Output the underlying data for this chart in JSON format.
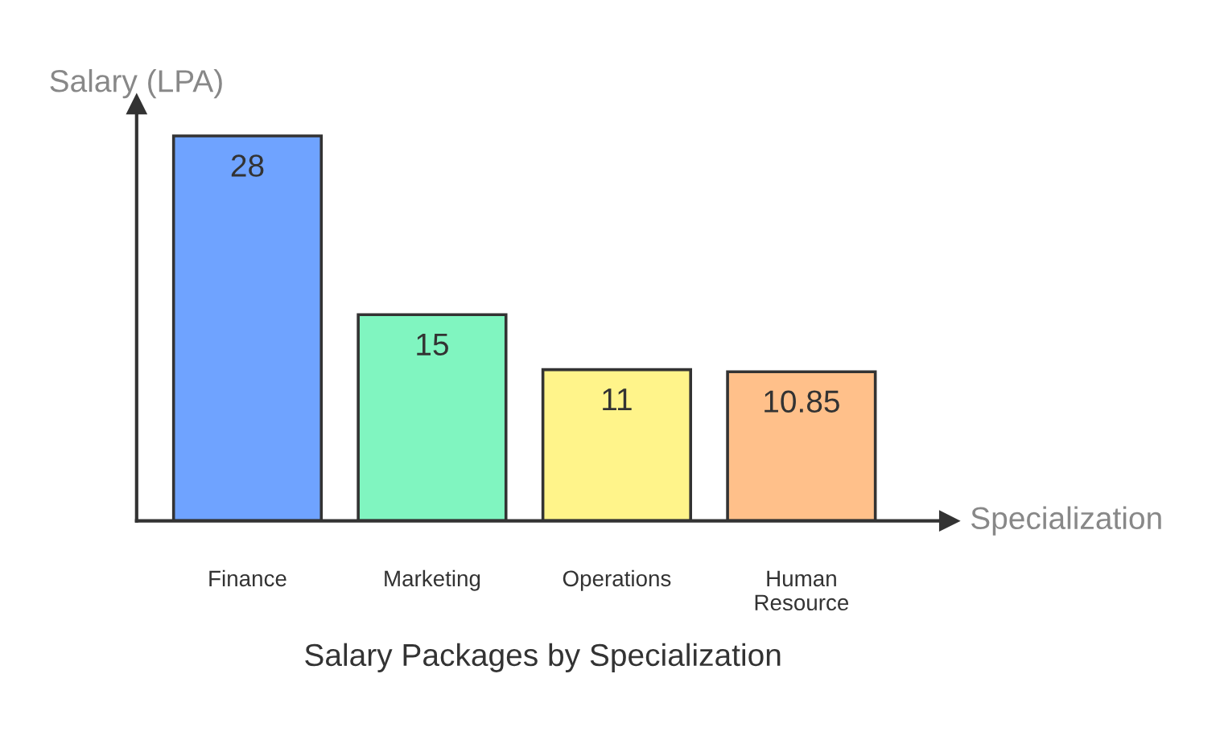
{
  "chart_data": {
    "type": "bar",
    "title": "Salary Packages by Specialization",
    "xlabel": "Specialization",
    "ylabel": "Salary (LPA)",
    "categories": [
      "Finance",
      "Marketing",
      "Operations",
      "Human\nResource"
    ],
    "values": [
      28,
      15,
      11,
      10.85
    ],
    "colors": [
      "#6fa3ff",
      "#80f5c0",
      "#fff48a",
      "#ffc08a"
    ],
    "ylim": [
      0,
      30.3
    ],
    "data_labels": true,
    "grid": false,
    "legend": false
  }
}
